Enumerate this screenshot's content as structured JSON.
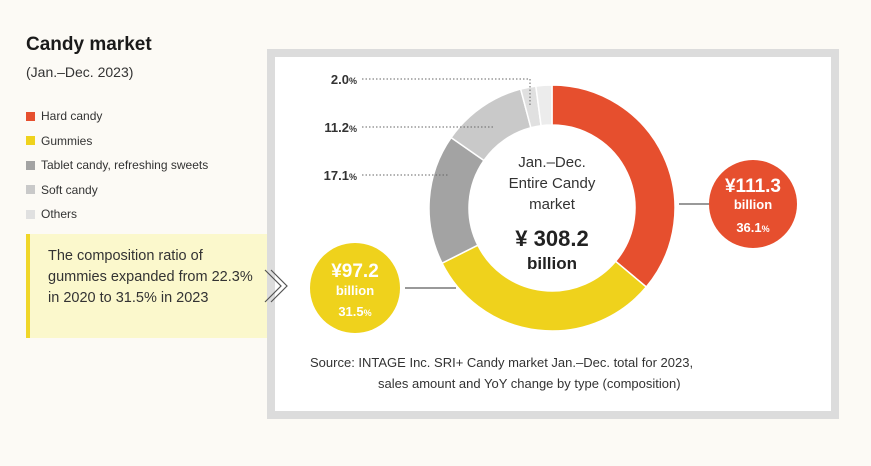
{
  "header": {
    "title": "Candy market",
    "period": "(Jan.–Dec. 2023)"
  },
  "legend": [
    {
      "label": "Hard candy",
      "color": "#e64f2e"
    },
    {
      "label": "Gummies",
      "color": "#efd21c"
    },
    {
      "label": "Tablet candy, refreshing sweets",
      "color": "#a3a3a3"
    },
    {
      "label": "Soft candy",
      "color": "#c9c9c9"
    },
    {
      "label": "Others",
      "color": "#e0e0e0"
    }
  ],
  "callout": {
    "text": "The composition ratio of gummies expanded from 22.3% in 2020 to 31.5% in 2023"
  },
  "chart_data": {
    "type": "pie",
    "title": "Jan.–Dec. Entire Candy market",
    "center_line1": "Jan.–Dec.",
    "center_line2": "Entire Candy",
    "center_line3": "market",
    "total_value": "¥ 308.2",
    "total_unit": "billion",
    "unit": "%",
    "slices": [
      {
        "name": "Hard candy",
        "value": 36.1,
        "label": "36.1",
        "amount": "¥111.3",
        "amount_unit": "billion",
        "color": "#e64f2e"
      },
      {
        "name": "Gummies",
        "value": 31.5,
        "label": "31.5",
        "amount": "¥97.2",
        "amount_unit": "billion",
        "color": "#efd21c"
      },
      {
        "name": "Tablet candy, refreshing sweets",
        "value": 17.1,
        "label": "17.1",
        "color": "#a3a3a3"
      },
      {
        "name": "Soft candy",
        "value": 11.2,
        "label": "11.2",
        "color": "#c9c9c9"
      },
      {
        "name": "Others",
        "value": 2.0,
        "label": "2.0",
        "color": "#e0e0e0"
      },
      {
        "name": "Unlabeled",
        "value": 2.1,
        "label": "",
        "color": "#ececec"
      }
    ]
  },
  "source": {
    "line1": "Source: INTAGE Inc. SRI+ Candy market Jan.–Dec. total for 2023,",
    "line2": "sales amount and YoY change by type (composition)"
  }
}
